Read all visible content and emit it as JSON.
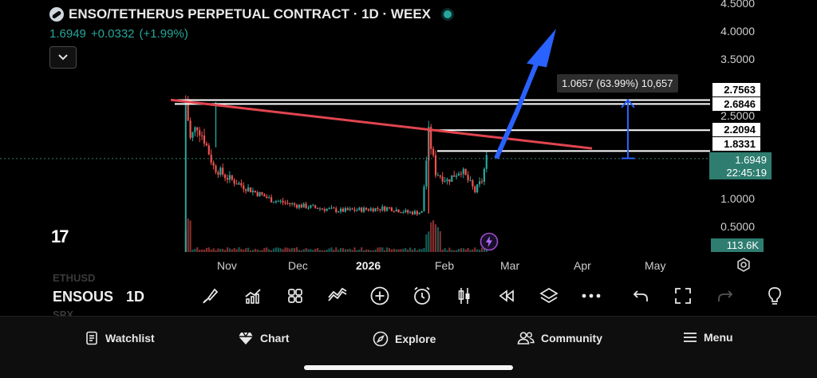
{
  "header": {
    "symbol_title": "ENSO/TETHERUS PERPETUAL CONTRACT · 1D · WEEX",
    "last_price": "1.6949",
    "change": "+0.0332",
    "change_pct": "(+1.99%)",
    "collapse_icon": "chevron-down-icon"
  },
  "price_axis": [
    "4.5000",
    "4.0000",
    "3.5000",
    "2.5000",
    "1.0000",
    "0.5000"
  ],
  "price_tags": [
    "2.7563",
    "2.6846",
    "2.2094",
    "1.8331"
  ],
  "current_price_tag": {
    "price": "1.6949",
    "countdown": "22:45:19"
  },
  "volume_tag": "113.6K",
  "measure_tooltip": "1.0657 (63.99%) 10,657",
  "time_axis": [
    "Nov",
    "Dec",
    "2026",
    "Feb",
    "Mar",
    "Apr",
    "May"
  ],
  "logo_text": "17",
  "toolbar": {
    "symbol": "ENSOUS",
    "interval": "1D",
    "ghost_above": "ETHUSD",
    "ghost_below": "SPX",
    "icons": [
      "brush-icon",
      "indicators-icon",
      "grid-icon",
      "draw-line-icon",
      "add-icon",
      "alarm-icon",
      "candles-icon",
      "replay-icon",
      "layers-icon",
      "more-icon",
      "undo-icon",
      "fullscreen-icon",
      "redo-icon",
      "bulb-icon"
    ]
  },
  "bottom_nav": {
    "items": [
      {
        "label": "Watchlist",
        "icon": "watchlist-icon"
      },
      {
        "label": "Chart",
        "icon": "chart-gem-icon"
      },
      {
        "label": "Explore",
        "icon": "compass-icon"
      },
      {
        "label": "Community",
        "icon": "community-icon"
      },
      {
        "label": "Menu",
        "icon": "menu-icon"
      }
    ]
  },
  "colors": {
    "up": "#26a69a",
    "down": "#ef5350",
    "trendline": "#e0454f",
    "arrow": "#2962ff",
    "measure": "#2962ff",
    "background": "#000000"
  },
  "chart_data": {
    "type": "candlestick",
    "symbol": "ENSO/TETHERUS PERPETUAL CONTRACT",
    "interval": "1D",
    "exchange": "WEEX",
    "last": 1.6949,
    "change": 0.0332,
    "change_pct": 1.99,
    "x_ticks": [
      "Nov",
      "Dec",
      "2026",
      "Feb",
      "Mar",
      "Apr",
      "May"
    ],
    "y_ticks": [
      4.5,
      4.0,
      3.5,
      2.5,
      1.0,
      0.5
    ],
    "ylim": [
      0.1,
      4.55
    ],
    "horizontal_levels": [
      2.7563,
      2.6846,
      2.2094,
      1.8331
    ],
    "series_close": [
      [
        "2025-10-14",
        2.75
      ],
      [
        "2025-10-16",
        2.05
      ],
      [
        "2025-10-19",
        2.3
      ],
      [
        "2025-10-22",
        2.05
      ],
      [
        "2025-10-26",
        1.55
      ],
      [
        "2025-11-01",
        1.35
      ],
      [
        "2025-11-10",
        1.15
      ],
      [
        "2025-11-20",
        0.95
      ],
      [
        "2025-12-01",
        0.85
      ],
      [
        "2025-12-10",
        0.8
      ],
      [
        "2025-12-20",
        0.75
      ],
      [
        "2026-01-01",
        0.78
      ],
      [
        "2026-01-10",
        0.8
      ],
      [
        "2026-01-18",
        0.72
      ],
      [
        "2026-01-24",
        0.72
      ],
      [
        "2026-01-27",
        2.15
      ],
      [
        "2026-01-30",
        1.45
      ],
      [
        "2026-02-04",
        1.3
      ],
      [
        "2026-02-10",
        1.5
      ],
      [
        "2026-02-16",
        1.1
      ],
      [
        "2026-02-19",
        1.3
      ],
      [
        "2026-02-21",
        1.6949
      ]
    ],
    "volume_last": "113.6K",
    "measure": {
      "change": 1.0657,
      "change_pct": 63.99,
      "ticks": 10657
    }
  }
}
